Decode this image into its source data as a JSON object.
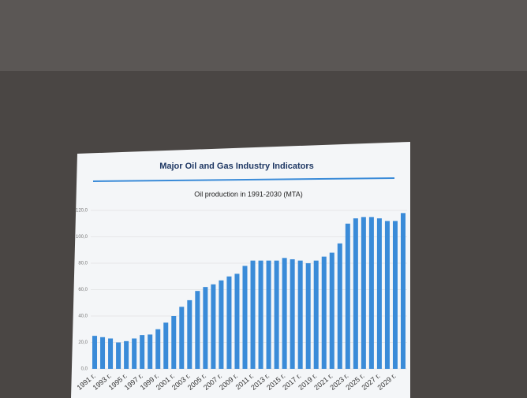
{
  "chart_data": {
    "type": "bar",
    "title": "Major Oil and Gas Industry Indicators",
    "subtitle": "Oil production in 1991-2030 (MTA)",
    "categories": [
      "1991 г.",
      null,
      "1993 г.",
      null,
      "1995 г.",
      null,
      "1997 г.",
      null,
      "1999 г.",
      null,
      "2001 г.",
      null,
      "2003 г.",
      null,
      "2005 г.",
      null,
      "2007 г.",
      null,
      "2009 г.",
      null,
      "2011 г.",
      null,
      "2013 г.",
      null,
      "2015 г.",
      null,
      "2017 г.",
      null,
      "2019 г.",
      null,
      "2021 г.",
      null,
      "2023 г.",
      null,
      "2025 г.",
      null,
      "2027 г.",
      null,
      "2029 г.",
      null
    ],
    "values": [
      25,
      24,
      23,
      20,
      21,
      23,
      25.6,
      26,
      30,
      35,
      40,
      47,
      52,
      59,
      62,
      64,
      67,
      70,
      72,
      78,
      82,
      82,
      82,
      82,
      84,
      83,
      82,
      80,
      82,
      85,
      88,
      95,
      110,
      114,
      115,
      115,
      114,
      112,
      112,
      118
    ],
    "color": "#3a8bd8",
    "ylim": [
      0,
      120
    ],
    "yticks": [
      {
        "value": 0,
        "label": "0,0"
      },
      {
        "value": 20,
        "label": "20,0"
      },
      {
        "value": 40,
        "label": "40,0"
      },
      {
        "value": 60,
        "label": "60,0"
      },
      {
        "value": 80,
        "label": "80,0"
      },
      {
        "value": 100,
        "label": "100,0"
      },
      {
        "value": 120,
        "label": "120,0"
      }
    ],
    "grid": true
  }
}
